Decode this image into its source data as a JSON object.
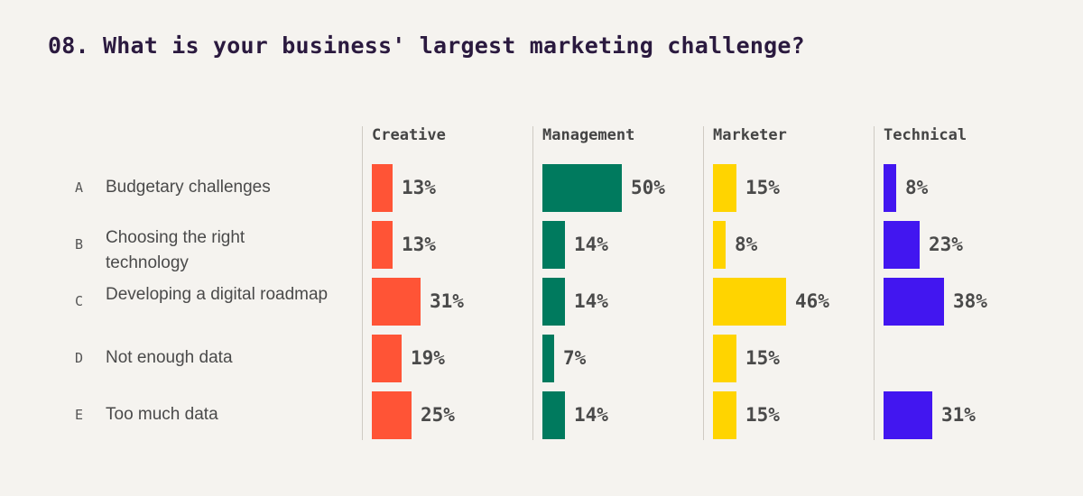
{
  "chart_data": {
    "type": "bar",
    "title": "08. What is your business' largest marketing challenge?",
    "categories": [
      {
        "letter": "A",
        "label": "Budgetary challenges"
      },
      {
        "letter": "B",
        "label": "Choosing the right technology"
      },
      {
        "letter": "C",
        "label": "Developing a digital roadmap"
      },
      {
        "letter": "D",
        "label": "Not enough data"
      },
      {
        "letter": "E",
        "label": "Too much data"
      }
    ],
    "series": [
      {
        "name": "Creative",
        "color": "#ff5436",
        "values": [
          13,
          13,
          31,
          19,
          25
        ],
        "labels": [
          "13%",
          "13%",
          "31%",
          "19%",
          "25%"
        ]
      },
      {
        "name": "Management",
        "color": "#007a5e",
        "values": [
          50,
          14,
          14,
          7,
          14
        ],
        "labels": [
          "50%",
          "14%",
          "14%",
          "7%",
          "14%"
        ]
      },
      {
        "name": "Marketer",
        "color": "#ffd400",
        "values": [
          15,
          8,
          46,
          15,
          15
        ],
        "labels": [
          "15%",
          "8%",
          "46%",
          "15%",
          "15%"
        ]
      },
      {
        "name": "Technical",
        "color": "#4216f0",
        "values": [
          8,
          23,
          38,
          null,
          31
        ],
        "labels": [
          "8%",
          "23%",
          "38%",
          "",
          "31%"
        ]
      }
    ],
    "unit": "%"
  }
}
